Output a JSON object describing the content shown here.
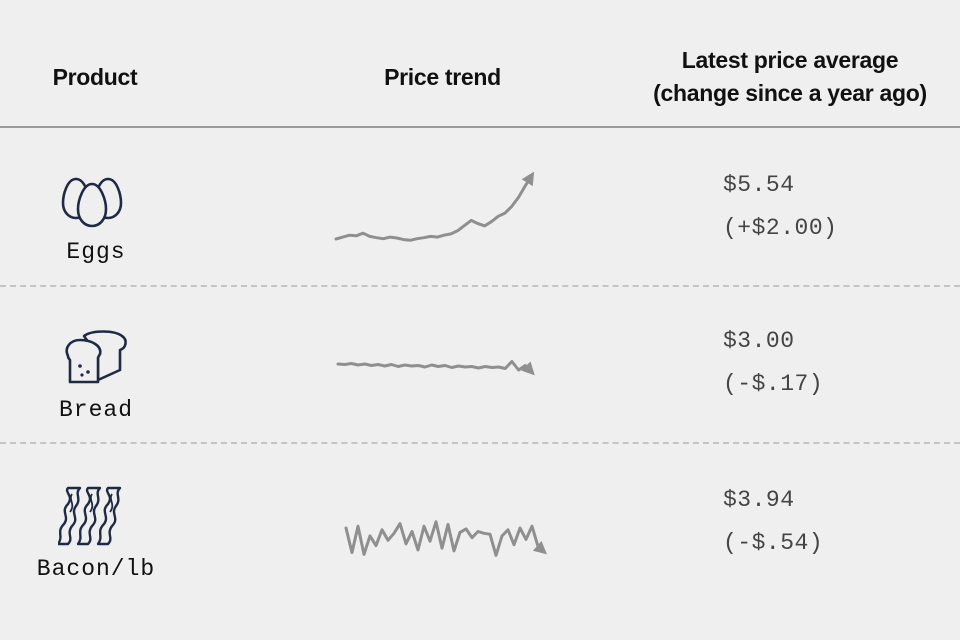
{
  "header": {
    "product": "Product",
    "price_trend": "Price trend",
    "latest_line1": "Latest price average",
    "latest_line2": "(change since a year ago)"
  },
  "products": [
    {
      "name": "Eggs",
      "icon": "eggs-icon",
      "price": "$5.54",
      "change": "(+$2.00)"
    },
    {
      "name": "Bread",
      "icon": "bread-loaf-icon",
      "price": "$3.00",
      "change": "(-$.17)"
    },
    {
      "name": "Bacon/lb",
      "icon": "bacon-strips-icon",
      "price": "$3.94",
      "change": "(-$.54)"
    }
  ],
  "chart_data": {
    "type": "line",
    "series": [
      {
        "name": "Eggs",
        "values": [
          3.54,
          3.6,
          3.66,
          3.64,
          3.72,
          3.62,
          3.58,
          3.55,
          3.6,
          3.57,
          3.52,
          3.5,
          3.55,
          3.58,
          3.62,
          3.6,
          3.66,
          3.7,
          3.8,
          3.96,
          4.12,
          4.02,
          3.95,
          4.08,
          4.25,
          4.35,
          4.56,
          4.84,
          5.2,
          5.54
        ]
      },
      {
        "name": "Bread",
        "values": [
          3.17,
          3.16,
          3.18,
          3.15,
          3.17,
          3.14,
          3.16,
          3.13,
          3.16,
          3.12,
          3.15,
          3.13,
          3.14,
          3.11,
          3.15,
          3.12,
          3.14,
          3.1,
          3.13,
          3.11,
          3.12,
          3.09,
          3.12,
          3.1,
          3.11,
          3.08,
          3.22,
          3.05,
          3.14,
          3.0
        ]
      },
      {
        "name": "Bacon/lb",
        "values": [
          4.48,
          3.92,
          4.52,
          3.88,
          4.3,
          4.08,
          4.44,
          4.2,
          4.36,
          4.58,
          4.12,
          4.4,
          3.98,
          4.52,
          4.18,
          4.62,
          4.02,
          4.56,
          3.96,
          4.38,
          4.46,
          4.26,
          4.4,
          4.36,
          4.34,
          3.86,
          4.3,
          4.44,
          4.1,
          4.48,
          4.22,
          4.52,
          4.06,
          3.94
        ]
      }
    ],
    "colors": {
      "line": "#8f8f8f",
      "icon": "#1f2a44",
      "rule": "#9a9a9a",
      "dash": "#c4c4c4"
    }
  }
}
